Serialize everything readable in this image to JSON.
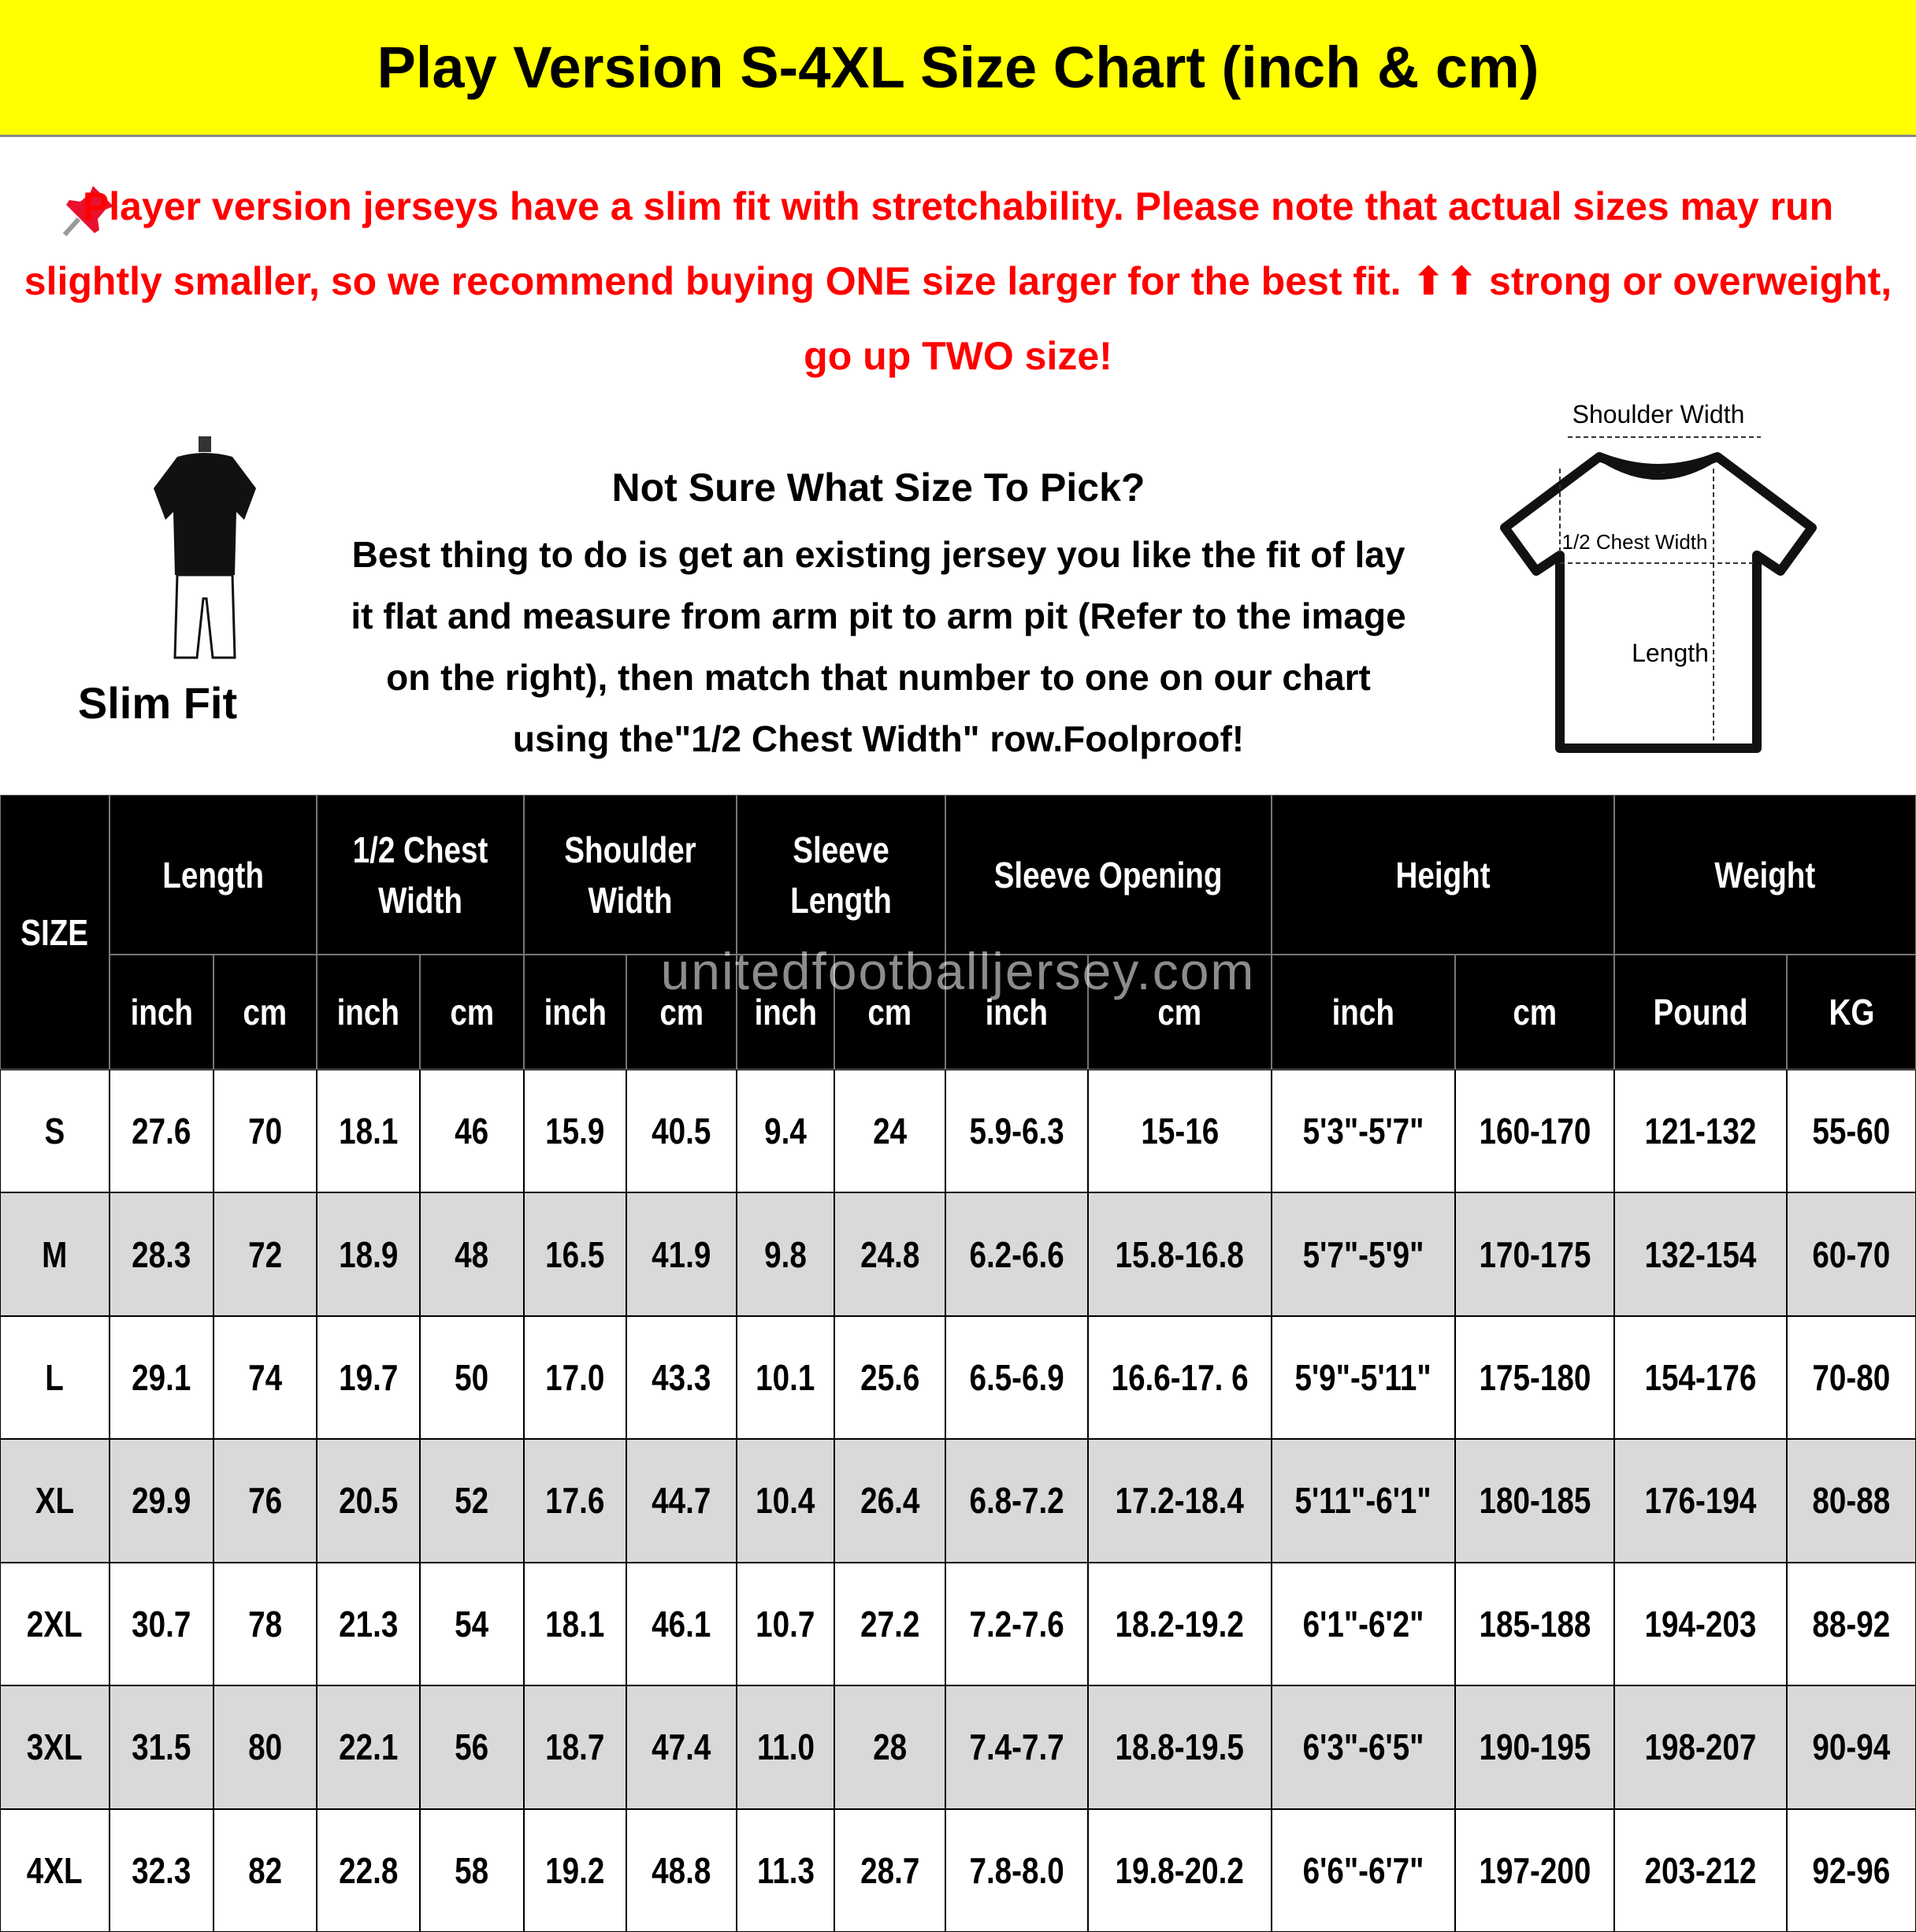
{
  "header": {
    "title": "Play Version S-4XL Size Chart (inch & cm)"
  },
  "notice": {
    "text": "Player version jerseys have a slim fit with stretchability. Please note that actual sizes may run slightly smaller, so we recommend buying ONE size larger for the best fit. ⬆⬆ strong or overweight, go up TWO size!"
  },
  "fit": {
    "label": "Slim Fit"
  },
  "guide": {
    "title": "Not Sure What Size To Pick?",
    "text": "Best thing to do is get an existing jersey you like the fit of lay it flat and measure from arm pit to arm pit (Refer to the image on the right), then match that number to one on our chart using the\"1/2 Chest Width\" row.Foolproof!"
  },
  "diagram": {
    "shoulder": "Shoulder Width",
    "chest": "1/2 Chest Width",
    "length": "Length"
  },
  "table": {
    "size_header": "SIZE",
    "groups": [
      "Length",
      "1/2 Chest Width",
      "Shoulder Width",
      "Sleeve Length",
      "Sleeve Opening",
      "Height",
      "Weight"
    ],
    "subheaders": [
      "inch",
      "cm",
      "inch",
      "cm",
      "inch",
      "cm",
      "inch",
      "cm",
      "inch",
      "cm",
      "inch",
      "cm",
      "Pound",
      "KG"
    ],
    "rows": [
      [
        "S",
        "27.6",
        "70",
        "18.1",
        "46",
        "15.9",
        "40.5",
        "9.4",
        "24",
        "5.9-6.3",
        "15-16",
        "5'3\"-5'7\"",
        "160-170",
        "121-132",
        "55-60"
      ],
      [
        "M",
        "28.3",
        "72",
        "18.9",
        "48",
        "16.5",
        "41.9",
        "9.8",
        "24.8",
        "6.2-6.6",
        "15.8-16.8",
        "5'7\"-5'9\"",
        "170-175",
        "132-154",
        "60-70"
      ],
      [
        "L",
        "29.1",
        "74",
        "19.7",
        "50",
        "17.0",
        "43.3",
        "10.1",
        "25.6",
        "6.5-6.9",
        "16.6-17. 6",
        "5'9\"-5'11\"",
        "175-180",
        "154-176",
        "70-80"
      ],
      [
        "XL",
        "29.9",
        "76",
        "20.5",
        "52",
        "17.6",
        "44.7",
        "10.4",
        "26.4",
        "6.8-7.2",
        "17.2-18.4",
        "5'11\"-6'1\"",
        "180-185",
        "176-194",
        "80-88"
      ],
      [
        "2XL",
        "30.7",
        "78",
        "21.3",
        "54",
        "18.1",
        "46.1",
        "10.7",
        "27.2",
        "7.2-7.6",
        "18.2-19.2",
        "6'1\"-6'2\"",
        "185-188",
        "194-203",
        "88-92"
      ],
      [
        "3XL",
        "31.5",
        "80",
        "22.1",
        "56",
        "18.7",
        "47.4",
        "11.0",
        "28",
        "7.4-7.7",
        "18.8-19.5",
        "6'3\"-6'5\"",
        "190-195",
        "198-207",
        "90-94"
      ],
      [
        "4XL",
        "32.3",
        "82",
        "22.8",
        "58",
        "19.2",
        "48.8",
        "11.3",
        "28.7",
        "7.8-8.0",
        "19.8-20.2",
        "6'6\"-6'7\"",
        "197-200",
        "203-212",
        "92-96"
      ]
    ]
  },
  "watermark": "unitedfootballjersey.com"
}
